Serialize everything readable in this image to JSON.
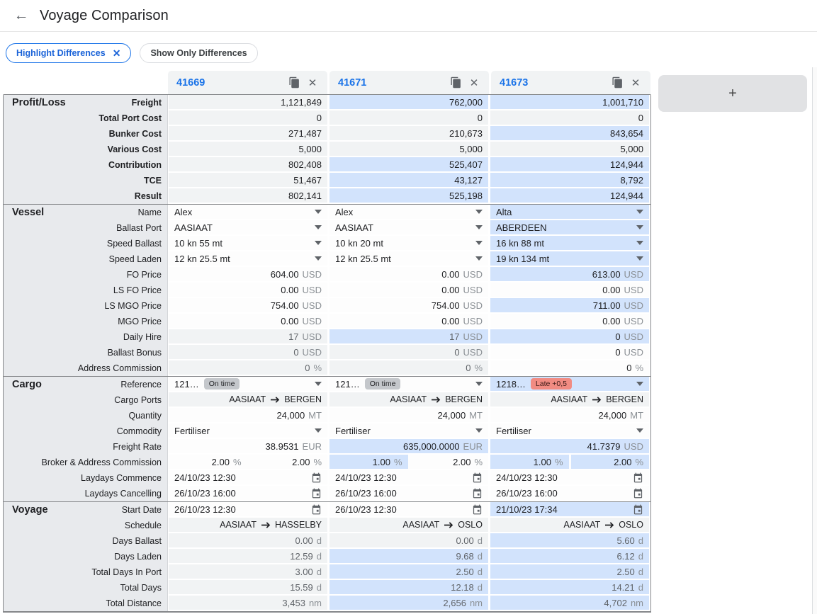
{
  "header": {
    "back_icon": "arrow-left",
    "title": "Voyage Comparison"
  },
  "filters": {
    "highlight_chip": "Highlight Differences",
    "show_only_chip": "Show Only Differences"
  },
  "add_button_label": "+",
  "colors": {
    "link_blue": "#1a73e8",
    "highlight_cell": "#d2e3fc",
    "readonly_cell": "#f1f3f4",
    "label_panel": "#e8eaed",
    "badge_gray": "#c4c7cb",
    "badge_red": "#f18b82"
  },
  "table": {
    "columns": [
      {
        "id": "41669"
      },
      {
        "id": "41671"
      },
      {
        "id": "41673"
      }
    ],
    "sections": [
      {
        "title": "Profit/Loss",
        "bold_labels": true,
        "rows": [
          {
            "label": "Freight",
            "type": "num",
            "cells": [
              {
                "v": "1,121,849",
                "bg": "g"
              },
              {
                "v": "762,000",
                "bg": "b"
              },
              {
                "v": "1,001,710",
                "bg": "b"
              }
            ]
          },
          {
            "label": "Total Port Cost",
            "type": "num",
            "cells": [
              {
                "v": "0",
                "bg": "g"
              },
              {
                "v": "0",
                "bg": "g"
              },
              {
                "v": "0",
                "bg": "g"
              }
            ]
          },
          {
            "label": "Bunker Cost",
            "type": "num",
            "cells": [
              {
                "v": "271,487",
                "bg": "g"
              },
              {
                "v": "210,673",
                "bg": "g"
              },
              {
                "v": "843,654",
                "bg": "b"
              }
            ]
          },
          {
            "label": "Various Cost",
            "type": "num",
            "cells": [
              {
                "v": "5,000",
                "bg": "g"
              },
              {
                "v": "5,000",
                "bg": "g"
              },
              {
                "v": "5,000",
                "bg": "g"
              }
            ]
          },
          {
            "label": "Contribution",
            "type": "num",
            "cells": [
              {
                "v": "802,408",
                "bg": "g"
              },
              {
                "v": "525,407",
                "bg": "b"
              },
              {
                "v": "124,944",
                "bg": "b"
              }
            ]
          },
          {
            "label": "TCE",
            "type": "num",
            "cells": [
              {
                "v": "51,467",
                "bg": "g"
              },
              {
                "v": "43,127",
                "bg": "b"
              },
              {
                "v": "8,792",
                "bg": "b"
              }
            ]
          },
          {
            "label": "Result",
            "type": "num",
            "cells": [
              {
                "v": "802,141",
                "bg": "g"
              },
              {
                "v": "525,198",
                "bg": "b"
              },
              {
                "v": "124,944",
                "bg": "b"
              }
            ]
          }
        ]
      },
      {
        "title": "Vessel",
        "bold_labels": false,
        "rows": [
          {
            "label": "Name",
            "type": "select",
            "cells": [
              {
                "v": "Alex",
                "bg": "w"
              },
              {
                "v": "Alex",
                "bg": "w"
              },
              {
                "v": "Alta",
                "bg": "b"
              }
            ]
          },
          {
            "label": "Ballast Port",
            "type": "select",
            "cells": [
              {
                "v": "AASIAAT",
                "bg": "w"
              },
              {
                "v": "AASIAAT",
                "bg": "w"
              },
              {
                "v": "ABERDEEN",
                "bg": "b"
              }
            ]
          },
          {
            "label": "Speed Ballast",
            "type": "select",
            "cells": [
              {
                "v": "10 kn 55 mt",
                "bg": "w"
              },
              {
                "v": "10 kn 20 mt",
                "bg": "w"
              },
              {
                "v": "16 kn 88 mt",
                "bg": "b"
              }
            ]
          },
          {
            "label": "Speed Laden",
            "type": "select",
            "cells": [
              {
                "v": "12 kn 25.5 mt",
                "bg": "w"
              },
              {
                "v": "12 kn 25.5 mt",
                "bg": "w"
              },
              {
                "v": "19 kn 134 mt",
                "bg": "b"
              }
            ]
          },
          {
            "label": "FO Price",
            "type": "unit",
            "cells": [
              {
                "v": "604.00",
                "u": "USD",
                "bg": "w"
              },
              {
                "v": "0.00",
                "u": "USD",
                "bg": "w"
              },
              {
                "v": "613.00",
                "u": "USD",
                "bg": "b"
              }
            ]
          },
          {
            "label": "LS FO Price",
            "type": "unit",
            "cells": [
              {
                "v": "0.00",
                "u": "USD",
                "bg": "w"
              },
              {
                "v": "0.00",
                "u": "USD",
                "bg": "w"
              },
              {
                "v": "0.00",
                "u": "USD",
                "bg": "w"
              }
            ]
          },
          {
            "label": "LS MGO Price",
            "type": "unit",
            "cells": [
              {
                "v": "754.00",
                "u": "USD",
                "bg": "w"
              },
              {
                "v": "754.00",
                "u": "USD",
                "bg": "w"
              },
              {
                "v": "711.00",
                "u": "USD",
                "bg": "b"
              }
            ]
          },
          {
            "label": "MGO Price",
            "type": "unit",
            "cells": [
              {
                "v": "0.00",
                "u": "USD",
                "bg": "w"
              },
              {
                "v": "0.00",
                "u": "USD",
                "bg": "w"
              },
              {
                "v": "0.00",
                "u": "USD",
                "bg": "w"
              }
            ]
          },
          {
            "label": "Daily Hire",
            "type": "unit",
            "cells": [
              {
                "v": "17",
                "u": "USD",
                "bg": "g",
                "muted": true
              },
              {
                "v": "17",
                "u": "USD",
                "bg": "b",
                "muted": true
              },
              {
                "v": "0",
                "u": "USD",
                "bg": "b"
              }
            ]
          },
          {
            "label": "Ballast Bonus",
            "type": "unit",
            "cells": [
              {
                "v": "0",
                "u": "USD",
                "bg": "g",
                "muted": true
              },
              {
                "v": "0",
                "u": "USD",
                "bg": "g",
                "muted": true
              },
              {
                "v": "0",
                "u": "USD",
                "bg": "w"
              }
            ]
          },
          {
            "label": "Address Commission",
            "type": "unit",
            "cells": [
              {
                "v": "0",
                "u": "%",
                "bg": "g",
                "muted": true
              },
              {
                "v": "0",
                "u": "%",
                "bg": "g",
                "muted": true
              },
              {
                "v": "0",
                "u": "%",
                "bg": "w"
              }
            ]
          }
        ]
      },
      {
        "title": "Cargo",
        "bold_labels": false,
        "rows": [
          {
            "label": "Reference",
            "type": "ref",
            "cells": [
              {
                "v": "121…",
                "bg": "w",
                "badge": {
                  "text": "On time",
                  "color": "gray"
                }
              },
              {
                "v": "121…",
                "bg": "w",
                "badge": {
                  "text": "On time",
                  "color": "gray"
                }
              },
              {
                "v": "1218…",
                "bg": "b",
                "badge": {
                  "text": "Late +0,5",
                  "color": "red"
                }
              }
            ]
          },
          {
            "label": "Cargo Ports",
            "type": "route",
            "cells": [
              {
                "from": "AASIAAT",
                "to": "BERGEN",
                "bg": "g"
              },
              {
                "from": "AASIAAT",
                "to": "BERGEN",
                "bg": "g"
              },
              {
                "from": "AASIAAT",
                "to": "BERGEN",
                "bg": "g"
              }
            ]
          },
          {
            "label": "Quantity",
            "type": "unit",
            "cells": [
              {
                "v": "24,000",
                "u": "MT",
                "bg": "w"
              },
              {
                "v": "24,000",
                "u": "MT",
                "bg": "w"
              },
              {
                "v": "24,000",
                "u": "MT",
                "bg": "w"
              }
            ]
          },
          {
            "label": "Commodity",
            "type": "select",
            "cells": [
              {
                "v": "Fertiliser",
                "bg": "w"
              },
              {
                "v": "Fertiliser",
                "bg": "w"
              },
              {
                "v": "Fertiliser",
                "bg": "w"
              }
            ]
          },
          {
            "label": "Freight Rate",
            "type": "unit",
            "cells": [
              {
                "v": "38.9531",
                "u": "EUR",
                "bg": "w"
              },
              {
                "v": "635,000.0000",
                "u": "EUR",
                "bg": "b"
              },
              {
                "v": "41.7379",
                "u": "USD",
                "bg": "b"
              }
            ]
          },
          {
            "label": "Broker & Address Commission",
            "type": "split",
            "cells": [
              {
                "halves": [
                  {
                    "v": "2.00",
                    "u": "%",
                    "bg": "w"
                  },
                  {
                    "v": "2.00",
                    "u": "%",
                    "bg": "w"
                  }
                ]
              },
              {
                "halves": [
                  {
                    "v": "1.00",
                    "u": "%",
                    "bg": "b"
                  },
                  {
                    "v": "2.00",
                    "u": "%",
                    "bg": "w"
                  }
                ]
              },
              {
                "halves": [
                  {
                    "v": "1.00",
                    "u": "%",
                    "bg": "b"
                  },
                  {
                    "v": "2.00",
                    "u": "%",
                    "bg": "b"
                  }
                ]
              }
            ]
          },
          {
            "label": "Laydays Commence",
            "type": "date",
            "cells": [
              {
                "v": "24/10/23 12:30",
                "bg": "w"
              },
              {
                "v": "24/10/23 12:30",
                "bg": "w"
              },
              {
                "v": "24/10/23 12:30",
                "bg": "w"
              }
            ]
          },
          {
            "label": "Laydays Cancelling",
            "type": "date",
            "cells": [
              {
                "v": "26/10/23 16:00",
                "bg": "w"
              },
              {
                "v": "26/10/23 16:00",
                "bg": "w"
              },
              {
                "v": "26/10/23 16:00",
                "bg": "w"
              }
            ]
          }
        ]
      },
      {
        "title": "Voyage",
        "bold_labels": false,
        "rows": [
          {
            "label": "Start Date",
            "type": "date",
            "cells": [
              {
                "v": "26/10/23 12:30",
                "bg": "w"
              },
              {
                "v": "26/10/23 12:30",
                "bg": "w"
              },
              {
                "v": "21/10/23 17:34",
                "bg": "b"
              }
            ]
          },
          {
            "label": "Schedule",
            "type": "route",
            "cells": [
              {
                "from": "AASIAAT",
                "to": "HASSELBY",
                "bg": "g"
              },
              {
                "from": "AASIAAT",
                "to": "OSLO",
                "bg": "g"
              },
              {
                "from": "AASIAAT",
                "to": "OSLO",
                "bg": "g"
              }
            ]
          },
          {
            "label": "Days Ballast",
            "type": "unit",
            "cells": [
              {
                "v": "0.00",
                "u": "d",
                "bg": "g",
                "muted": true
              },
              {
                "v": "0.00",
                "u": "d",
                "bg": "g",
                "muted": true
              },
              {
                "v": "5.60",
                "u": "d",
                "bg": "b",
                "muted": true
              }
            ]
          },
          {
            "label": "Days Laden",
            "type": "unit",
            "cells": [
              {
                "v": "12.59",
                "u": "d",
                "bg": "g",
                "muted": true
              },
              {
                "v": "9.68",
                "u": "d",
                "bg": "b",
                "muted": true
              },
              {
                "v": "6.12",
                "u": "d",
                "bg": "b",
                "muted": true
              }
            ]
          },
          {
            "label": "Total Days In Port",
            "type": "unit",
            "cells": [
              {
                "v": "3.00",
                "u": "d",
                "bg": "g",
                "muted": true
              },
              {
                "v": "2.50",
                "u": "d",
                "bg": "b",
                "muted": true
              },
              {
                "v": "2.50",
                "u": "d",
                "bg": "b",
                "muted": true
              }
            ]
          },
          {
            "label": "Total Days",
            "type": "unit",
            "cells": [
              {
                "v": "15.59",
                "u": "d",
                "bg": "g",
                "muted": true
              },
              {
                "v": "12.18",
                "u": "d",
                "bg": "b",
                "muted": true
              },
              {
                "v": "14.21",
                "u": "d",
                "bg": "b",
                "muted": true
              }
            ]
          },
          {
            "label": "Total Distance",
            "type": "unit",
            "cells": [
              {
                "v": "3,453",
                "u": "nm",
                "bg": "g",
                "muted": true
              },
              {
                "v": "2,656",
                "u": "nm",
                "bg": "b",
                "muted": true
              },
              {
                "v": "4,702",
                "u": "nm",
                "bg": "b",
                "muted": true
              }
            ]
          }
        ]
      }
    ]
  }
}
